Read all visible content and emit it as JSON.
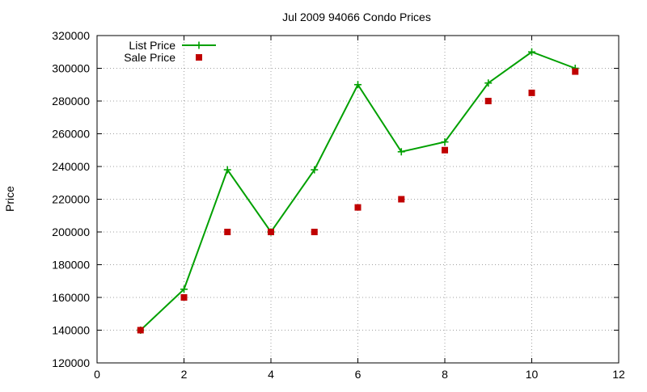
{
  "chart_data": {
    "type": "line",
    "title": "Jul 2009 94066 Condo Prices",
    "xlabel": "",
    "ylabel": "Price",
    "xlim": [
      0,
      12
    ],
    "ylim": [
      120000,
      320000
    ],
    "xticks": [
      0,
      2,
      4,
      6,
      8,
      10,
      12
    ],
    "yticks": [
      120000,
      140000,
      160000,
      180000,
      200000,
      220000,
      240000,
      260000,
      280000,
      300000,
      320000
    ],
    "grid": true,
    "legend_position": "top-left",
    "series": [
      {
        "name": "List Price",
        "style": "line-with-plus-markers",
        "color": "#00a000",
        "x": [
          1,
          2,
          3,
          4,
          5,
          6,
          7,
          8,
          9,
          10,
          11
        ],
        "y": [
          140000,
          165000,
          238000,
          200000,
          238000,
          290000,
          249000,
          255000,
          291000,
          310000,
          300000
        ]
      },
      {
        "name": "Sale Price",
        "style": "square-markers",
        "color": "#c00000",
        "x": [
          1,
          2,
          3,
          4,
          5,
          6,
          7,
          8,
          9,
          10,
          11
        ],
        "y": [
          140000,
          160000,
          200000,
          200000,
          200000,
          215000,
          220000,
          250000,
          280000,
          285000,
          298000
        ]
      }
    ]
  }
}
